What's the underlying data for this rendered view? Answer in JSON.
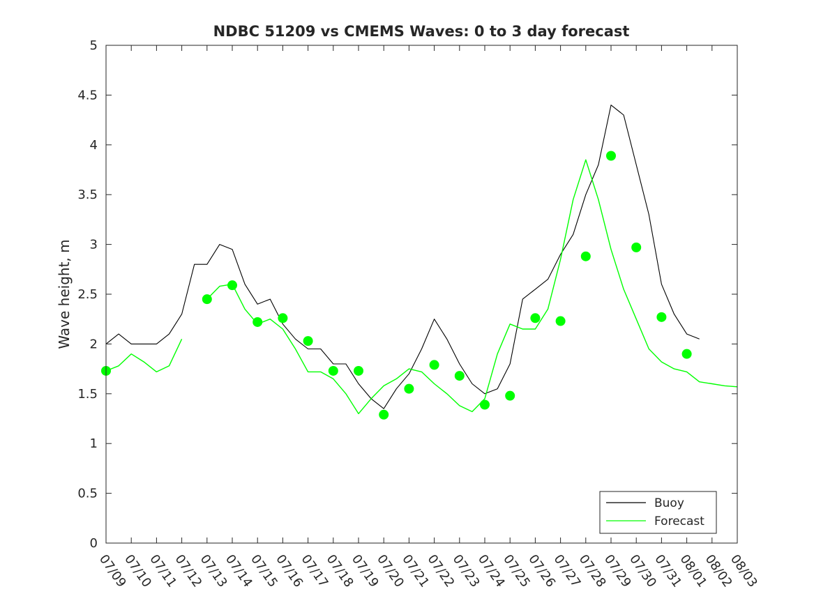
{
  "chart_data": {
    "type": "line",
    "title": "NDBC 51209 vs CMEMS Waves: 0 to 3 day forecast",
    "xlabel": "",
    "ylabel": "Wave height, m",
    "ylim": [
      0,
      5
    ],
    "xlim": [
      "07/09",
      "08/03"
    ],
    "y_ticks": [
      "0",
      "0.5",
      "1",
      "1.5",
      "2",
      "2.5",
      "3",
      "3.5",
      "4",
      "4.5",
      "5"
    ],
    "x_tick_labels": [
      "07/09",
      "07/10",
      "07/11",
      "07/12",
      "07/13",
      "07/14",
      "07/15",
      "07/16",
      "07/17",
      "07/18",
      "07/19",
      "07/20",
      "07/21",
      "07/22",
      "07/23",
      "07/24",
      "07/25",
      "07/26",
      "07/27",
      "07/28",
      "07/29",
      "07/30",
      "07/31",
      "08/01",
      "08/02",
      "08/03"
    ],
    "grid": false,
    "legend": {
      "position": "bottom-right",
      "entries": [
        "Buoy",
        "Forecast"
      ]
    },
    "colors": {
      "buoy": "#000000",
      "forecast": "#00ff00",
      "axes": "#262626"
    },
    "series": [
      {
        "name": "Buoy",
        "x": [
          0,
          0.5,
          1,
          1.5,
          2,
          2.5,
          3,
          3.5,
          4,
          4.5,
          5,
          5.5,
          6,
          6.5,
          7,
          7.5,
          8,
          8.5,
          9,
          9.5,
          10,
          10.5,
          11,
          11.5,
          12,
          12.5,
          13,
          13.5,
          14,
          14.5,
          15,
          15.5,
          16,
          16.5,
          17,
          17.5,
          18,
          18.5,
          19,
          19.5,
          20,
          20.5,
          21,
          21.5,
          22,
          22.5,
          23,
          23.5
        ],
        "y": [
          2.0,
          2.1,
          2.0,
          2.0,
          2.0,
          2.1,
          2.3,
          2.8,
          2.8,
          3.0,
          2.95,
          2.6,
          2.4,
          2.45,
          2.2,
          2.05,
          1.95,
          1.95,
          1.8,
          1.8,
          1.6,
          1.45,
          1.35,
          1.55,
          1.7,
          1.95,
          2.25,
          2.05,
          1.8,
          1.6,
          1.5,
          1.55,
          1.8,
          2.45,
          2.55,
          2.65,
          2.9,
          3.1,
          3.5,
          3.8,
          4.4,
          4.3,
          3.8,
          3.3,
          2.6,
          2.3,
          2.1,
          2.05
        ]
      },
      {
        "name": "Forecast",
        "x": [
          0,
          0.5,
          1,
          1.5,
          2,
          2.5,
          3,
          3.5,
          4,
          4.5,
          5,
          5.5,
          6,
          6.5,
          7,
          7.5,
          8,
          8.5,
          9,
          9.5,
          10,
          10.5,
          11,
          11.5,
          12,
          12.5,
          13,
          13.5,
          14,
          14.5,
          15,
          15.5,
          16,
          16.5,
          17,
          17.5,
          18,
          18.5,
          19,
          19.5,
          20,
          20.5,
          21,
          21.5,
          22,
          22.5,
          23,
          23.5,
          24,
          24.5,
          25
        ],
        "y": [
          1.73,
          1.78,
          1.9,
          1.82,
          1.72,
          1.78,
          2.05,
          null,
          2.45,
          2.58,
          2.6,
          2.35,
          2.2,
          2.25,
          2.15,
          1.95,
          1.72,
          1.72,
          1.65,
          1.5,
          1.3,
          1.45,
          1.58,
          1.65,
          1.75,
          1.72,
          1.6,
          1.5,
          1.38,
          1.32,
          1.45,
          1.9,
          2.2,
          2.15,
          2.15,
          2.35,
          2.85,
          3.45,
          3.85,
          3.45,
          2.95,
          2.55,
          2.25,
          1.95,
          1.82,
          1.75,
          1.72,
          1.62,
          1.6,
          1.58,
          1.57
        ]
      }
    ],
    "forecast_markers": {
      "x": [
        0,
        4,
        5,
        6,
        7,
        8,
        9,
        10,
        11,
        12,
        13,
        14,
        15,
        16,
        17,
        18,
        19,
        20,
        21,
        22,
        23
      ],
      "y": [
        1.73,
        2.45,
        2.59,
        2.22,
        2.26,
        2.03,
        1.73,
        1.73,
        1.29,
        1.55,
        1.79,
        1.68,
        1.39,
        1.48,
        2.26,
        2.23,
        2.88,
        3.89,
        2.97,
        2.27,
        1.9
      ]
    }
  }
}
